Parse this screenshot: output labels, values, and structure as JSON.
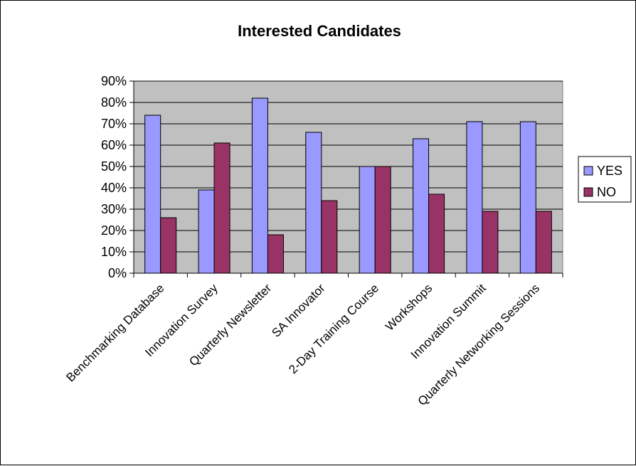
{
  "chart_data": {
    "type": "bar",
    "title": "Interested Candidates",
    "categories": [
      "Benchmarking Database",
      "Innovation Survey",
      "Quarterly Newsletter",
      "SA Innovator",
      "2-Day Training Course",
      "Workshops",
      "Innovation Summit",
      "Quarterly Networking Sessions"
    ],
    "series": [
      {
        "name": "YES",
        "values": [
          74,
          39,
          82,
          66,
          50,
          63,
          71,
          71
        ],
        "color": "#9999ff"
      },
      {
        "name": "NO",
        "values": [
          26,
          61,
          18,
          34,
          50,
          37,
          29,
          29
        ],
        "color": "#993366"
      }
    ],
    "y_ticks": [
      "0%",
      "10%",
      "20%",
      "30%",
      "40%",
      "50%",
      "60%",
      "70%",
      "80%",
      "90%"
    ],
    "ylim": [
      0,
      90
    ],
    "y_unit": "%",
    "grid": true,
    "plot_background": "#c0c0c0",
    "legend_position": "right"
  }
}
